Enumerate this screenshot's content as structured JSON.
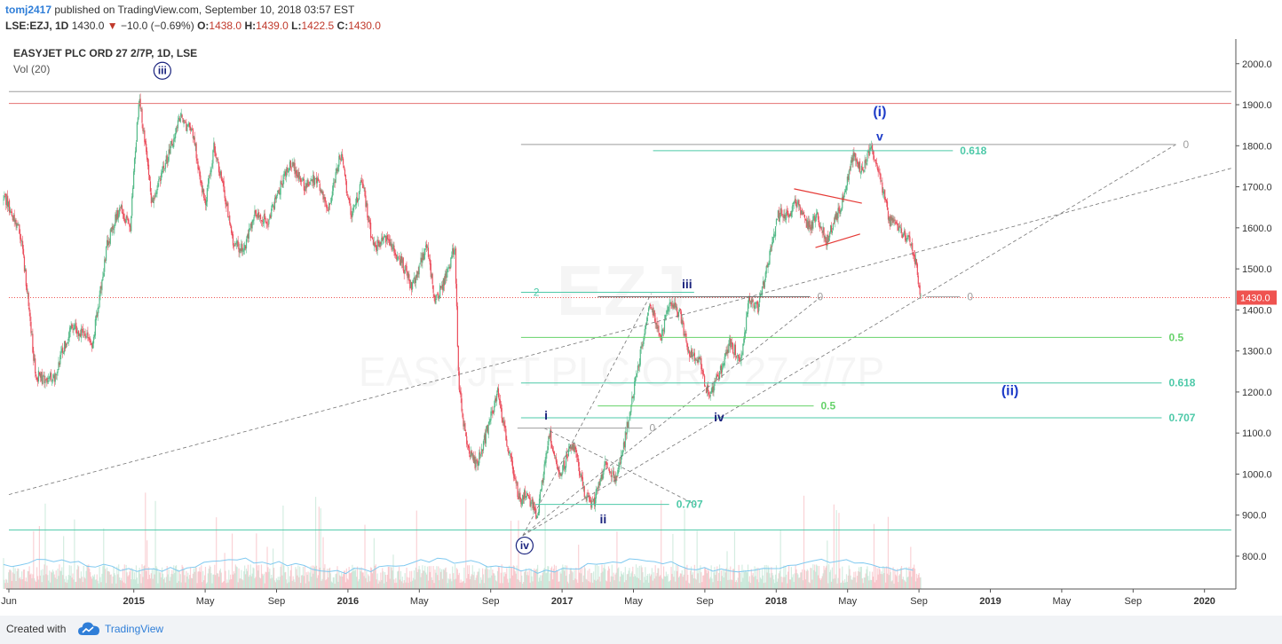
{
  "header": {
    "author": "tomj2417",
    "published": "published on TradingView.com, September 10, 2018 03:57 EST",
    "symbol": "LSE:EZJ, 1D",
    "last": "1430.0",
    "change": "−10.0 (−0.69%)",
    "ohlc": [
      {
        "label": "O:",
        "value": "1438.0"
      },
      {
        "label": "H:",
        "value": "1439.0"
      },
      {
        "label": "L:",
        "value": "1422.5"
      },
      {
        "label": "C:",
        "value": "1430.0"
      }
    ]
  },
  "footer": {
    "created_with": "Created with",
    "brand": "TradingView",
    "logo_icon": "tradingview-cloud-icon"
  },
  "colors": {
    "up": "#53b987",
    "down": "#eb4d5c",
    "fib": "#4dc9a8",
    "fib_green": "#66d26a",
    "wave": "#1a237e",
    "resistance": "#e57373",
    "price_tag": "#ef5350"
  },
  "chart_data": {
    "type": "candlestick",
    "title": "EASYJET PLC ORD 27 2/7P, 1D, LSE",
    "volume_label": "Vol (20)",
    "watermark": {
      "symbol": "EZJ",
      "name": "EASYJET PLC ORD 27 2/7P"
    },
    "ylim": [
      720,
      2060
    ],
    "y_ticks": [
      800,
      900,
      1000,
      1100,
      1200,
      1300,
      1400,
      1500,
      1600,
      1700,
      1800,
      1900,
      2000
    ],
    "y_tick_labels": [
      "800.0",
      "900.0",
      "1000.0",
      "1100.0",
      "1200.0",
      "1300.0",
      "1400.0",
      "1500.0",
      "1600.0",
      "1700.0",
      "1800.0",
      "1900.0",
      "2000.0"
    ],
    "x_ticks": [
      {
        "t": 0.0,
        "label": "Jun",
        "bold": false
      },
      {
        "t": 7.0,
        "label": "2015",
        "bold": true
      },
      {
        "t": 11.0,
        "label": "May",
        "bold": false
      },
      {
        "t": 15.0,
        "label": "Sep",
        "bold": false
      },
      {
        "t": 19.0,
        "label": "2016",
        "bold": true
      },
      {
        "t": 23.0,
        "label": "May",
        "bold": false
      },
      {
        "t": 27.0,
        "label": "Sep",
        "bold": false
      },
      {
        "t": 31.0,
        "label": "2017",
        "bold": true
      },
      {
        "t": 35.0,
        "label": "May",
        "bold": false
      },
      {
        "t": 39.0,
        "label": "Sep",
        "bold": false
      },
      {
        "t": 43.0,
        "label": "2018",
        "bold": true
      },
      {
        "t": 47.0,
        "label": "May",
        "bold": false
      },
      {
        "t": 51.0,
        "label": "Sep",
        "bold": false
      },
      {
        "t": 55.0,
        "label": "2019",
        "bold": true
      },
      {
        "t": 59.0,
        "label": "May",
        "bold": false
      },
      {
        "t": 63.0,
        "label": "Sep",
        "bold": false
      },
      {
        "t": 67.0,
        "label": "2020",
        "bold": true
      }
    ],
    "price_path": [
      [
        -0.3,
        1680
      ],
      [
        0.7,
        1580
      ],
      [
        1.5,
        1240
      ],
      [
        2.5,
        1230
      ],
      [
        3.5,
        1360
      ],
      [
        4.7,
        1320
      ],
      [
        5.5,
        1560
      ],
      [
        6.2,
        1650
      ],
      [
        6.8,
        1600
      ],
      [
        7.3,
        1920
      ],
      [
        8.0,
        1660
      ],
      [
        8.8,
        1760
      ],
      [
        9.6,
        1870
      ],
      [
        10.3,
        1830
      ],
      [
        11.0,
        1660
      ],
      [
        11.5,
        1800
      ],
      [
        12.0,
        1700
      ],
      [
        12.6,
        1560
      ],
      [
        13.2,
        1550
      ],
      [
        13.8,
        1640
      ],
      [
        14.5,
        1610
      ],
      [
        15.2,
        1700
      ],
      [
        15.8,
        1760
      ],
      [
        16.6,
        1700
      ],
      [
        17.2,
        1720
      ],
      [
        17.9,
        1640
      ],
      [
        18.6,
        1780
      ],
      [
        19.2,
        1620
      ],
      [
        19.8,
        1720
      ],
      [
        20.4,
        1550
      ],
      [
        21.2,
        1570
      ],
      [
        22.0,
        1520
      ],
      [
        22.6,
        1450
      ],
      [
        23.4,
        1560
      ],
      [
        23.9,
        1420
      ],
      [
        24.5,
        1480
      ],
      [
        25.0,
        1560
      ],
      [
        25.2,
        1220
      ],
      [
        25.6,
        1080
      ],
      [
        26.2,
        1020
      ],
      [
        26.9,
        1120
      ],
      [
        27.4,
        1200
      ],
      [
        27.9,
        1080
      ],
      [
        28.6,
        940
      ],
      [
        29.0,
        950
      ],
      [
        29.6,
        900
      ],
      [
        30.3,
        1100
      ],
      [
        30.9,
        1000
      ],
      [
        31.6,
        1080
      ],
      [
        32.2,
        960
      ],
      [
        32.7,
        920
      ],
      [
        33.4,
        1020
      ],
      [
        34.0,
        990
      ],
      [
        34.5,
        1080
      ],
      [
        35.2,
        1250
      ],
      [
        35.9,
        1420
      ],
      [
        36.5,
        1330
      ],
      [
        37.1,
        1420
      ],
      [
        37.6,
        1390
      ],
      [
        38.1,
        1290
      ],
      [
        38.7,
        1280
      ],
      [
        39.2,
        1190
      ],
      [
        39.8,
        1240
      ],
      [
        40.4,
        1320
      ],
      [
        41.0,
        1280
      ],
      [
        41.5,
        1430
      ],
      [
        42.0,
        1400
      ],
      [
        42.6,
        1530
      ],
      [
        43.1,
        1630
      ],
      [
        43.7,
        1640
      ],
      [
        44.2,
        1660
      ],
      [
        44.8,
        1600
      ],
      [
        45.3,
        1630
      ],
      [
        45.8,
        1570
      ],
      [
        46.3,
        1620
      ],
      [
        46.8,
        1670
      ],
      [
        47.3,
        1780
      ],
      [
        47.8,
        1740
      ],
      [
        48.3,
        1800
      ],
      [
        48.8,
        1730
      ],
      [
        49.3,
        1620
      ],
      [
        49.8,
        1600
      ],
      [
        50.3,
        1580
      ],
      [
        50.8,
        1520
      ],
      [
        51.1,
        1430
      ]
    ],
    "volume": {
      "base": 750,
      "avg_level": 790
    },
    "horizontal_lines": [
      {
        "y": 1932,
        "x1": 0.0,
        "x2": 68.5,
        "color": "#9e9e9e",
        "style": "solid"
      },
      {
        "y": 1903,
        "x1": 0.0,
        "x2": 68.5,
        "color": "#e57373",
        "style": "solid"
      },
      {
        "y": 864,
        "x1": 0.0,
        "x2": 68.5,
        "color": "#4dc9a8",
        "style": "solid"
      },
      {
        "y": 1430,
        "x1": 0.0,
        "x2": 68.5,
        "color": "#ef5350",
        "style": "dotted"
      }
    ],
    "fib_lines": [
      {
        "y": 1803,
        "x1": 28.7,
        "x2": 65.4,
        "color": "#9e9e9e",
        "label": "0"
      },
      {
        "y": 1788,
        "x1": 36.1,
        "x2": 52.9,
        "color": "#4dc9a8",
        "label": "0.618"
      },
      {
        "y": 1443,
        "x1": 28.7,
        "x2": 38.4,
        "color": "#4dc9a8",
        "label": "2"
      },
      {
        "y": 1432,
        "x1": 33.0,
        "x2": 44.9,
        "color": "#616161",
        "label": "0"
      },
      {
        "y": 1432,
        "x1": 51.4,
        "x2": 53.3,
        "color": "#9e9e9e",
        "label": "0"
      },
      {
        "y": 1333,
        "x1": 28.7,
        "x2": 64.6,
        "color": "#66d26a",
        "label": "0.5"
      },
      {
        "y": 1222,
        "x1": 28.7,
        "x2": 64.6,
        "color": "#4dc9a8",
        "label": "0.618"
      },
      {
        "y": 1166,
        "x1": 33.0,
        "x2": 45.1,
        "color": "#66d26a",
        "label": "0.5"
      },
      {
        "y": 1137,
        "x1": 28.7,
        "x2": 64.6,
        "color": "#4dc9a8",
        "label": "0.707"
      },
      {
        "y": 1112,
        "x1": 28.5,
        "x2": 35.5,
        "color": "#9e9e9e",
        "label": "0"
      },
      {
        "y": 926,
        "x1": 29.5,
        "x2": 37.0,
        "color": "#4dc9a8",
        "label": "0.707"
      }
    ],
    "trend_lines": [
      {
        "x1": 0.0,
        "y1": 950,
        "x2": 68.5,
        "y2": 1745,
        "color": "#757575",
        "dash": true
      },
      {
        "x1": 28.8,
        "y1": 850,
        "x2": 65.4,
        "y2": 1803,
        "color": "#757575",
        "dash": true
      },
      {
        "x1": 28.8,
        "y1": 850,
        "x2": 36.0,
        "y2": 1440,
        "color": "#757575",
        "dash": true
      },
      {
        "x1": 28.8,
        "y1": 850,
        "x2": 45.5,
        "y2": 1432,
        "color": "#757575",
        "dash": true
      },
      {
        "x1": 30.0,
        "y1": 1112,
        "x2": 38.5,
        "y2": 925,
        "color": "#757575",
        "dash": true
      },
      {
        "x1": 44.0,
        "y1": 1695,
        "x2": 47.8,
        "y2": 1660,
        "color": "#e53935",
        "dash": false
      },
      {
        "x1": 45.2,
        "y1": 1552,
        "x2": 47.7,
        "y2": 1585,
        "color": "#e53935",
        "dash": false
      }
    ],
    "wave_labels": [
      {
        "x": 8.6,
        "y": 1972,
        "text": "iii",
        "circled": true
      },
      {
        "x": 48.8,
        "y": 1872,
        "text": "(i)",
        "circled": false
      },
      {
        "x": 48.8,
        "y": 1813,
        "text": "v",
        "circled": false
      },
      {
        "x": 38.0,
        "y": 1453,
        "text": "iii",
        "circled": false
      },
      {
        "x": 56.1,
        "y": 1192,
        "text": "(ii)",
        "circled": false
      },
      {
        "x": 39.8,
        "y": 1128,
        "text": "iv",
        "circled": false
      },
      {
        "x": 30.1,
        "y": 1133,
        "text": "i",
        "circled": false
      },
      {
        "x": 33.3,
        "y": 880,
        "text": "ii",
        "circled": false
      },
      {
        "x": 28.9,
        "y": 815,
        "text": "iv",
        "circled": true
      }
    ],
    "price_tag": "1430.0",
    "grid": false,
    "legend": "none"
  }
}
